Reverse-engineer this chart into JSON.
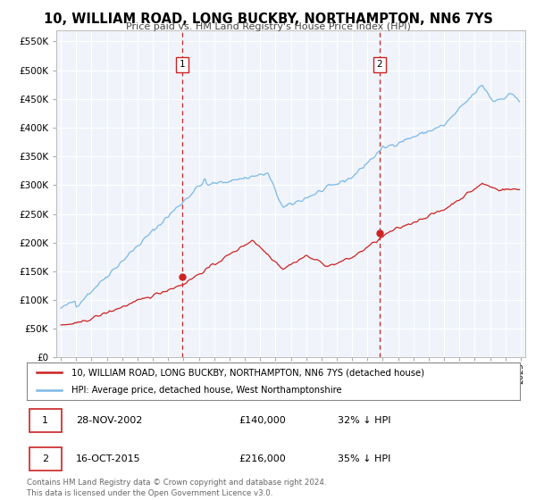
{
  "title": "10, WILLIAM ROAD, LONG BUCKBY, NORTHAMPTON, NN6 7YS",
  "subtitle": "Price paid vs. HM Land Registry's House Price Index (HPI)",
  "hpi_color": "#7cb8e8",
  "price_color": "#cc2222",
  "vline_color": "#cc2222",
  "ylim": [
    0,
    570000
  ],
  "yticks": [
    0,
    50000,
    100000,
    150000,
    200000,
    250000,
    300000,
    350000,
    400000,
    450000,
    500000,
    550000
  ],
  "sale1_x": 2002.91,
  "sale1_price": 140000,
  "sale2_x": 2015.79,
  "sale2_price": 216000,
  "legend_line1": "10, WILLIAM ROAD, LONG BUCKBY, NORTHAMPTON, NN6 7YS (detached house)",
  "legend_line2": "HPI: Average price, detached house, West Northamptonshire",
  "footer": "Contains HM Land Registry data © Crown copyright and database right 2024.\nThis data is licensed under the Open Government Licence v3.0.",
  "background_color": "#ffffff",
  "chart_bg": "#f0f4fa",
  "grid_color": "#ffffff"
}
